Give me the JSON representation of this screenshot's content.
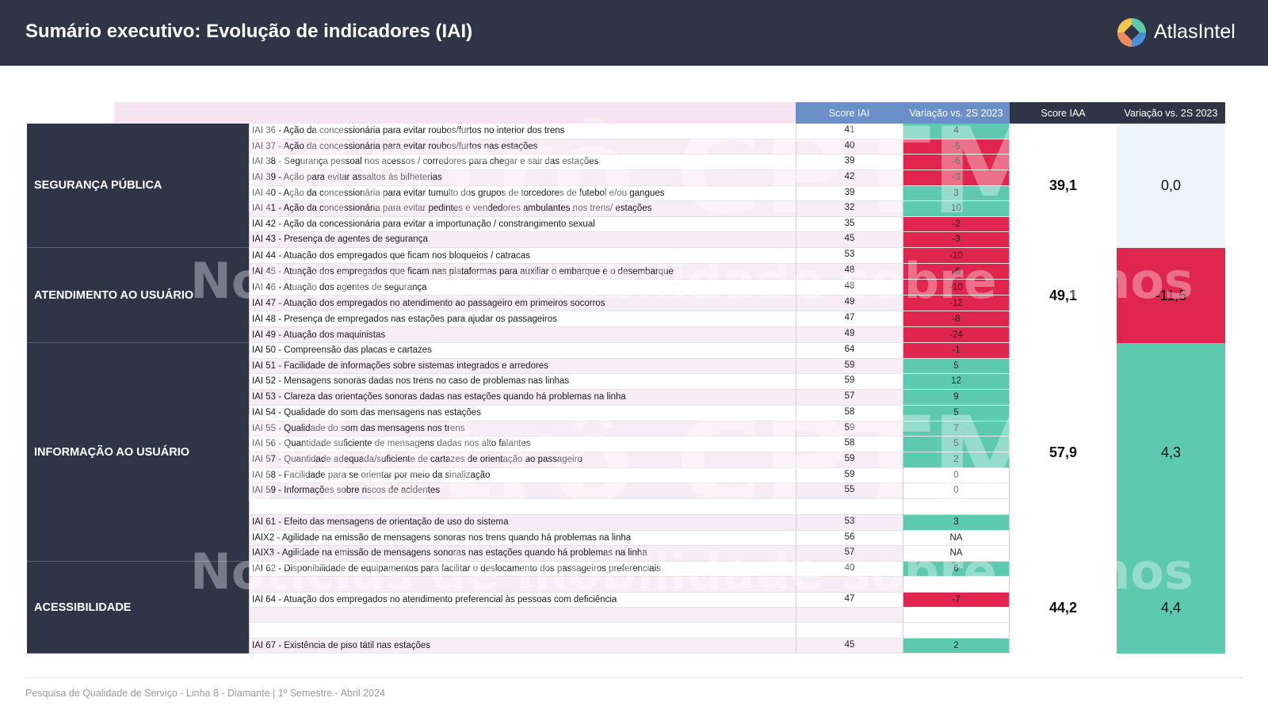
{
  "header": {
    "title": "Sumário executivo: Evolução de indicadores (IAI)",
    "logo_text": "AtlasIntel",
    "logo_icon": "atlasintel-logo-icon"
  },
  "columns": {
    "score_iai": "Score IAI",
    "variacao_iai": "Variação vs. 2S 2023",
    "score_iaa": "Score IAA",
    "variacao_iaa": "Variação vs. 2S 2023"
  },
  "colors": {
    "header_bg": "#2f3547",
    "positive": "#5dcab0",
    "negative": "#e0264e",
    "column_header_blue": "#6b8fc8"
  },
  "sections": [
    {
      "name": "SEGURANÇA PÚBLICA",
      "score_iaa": "39,1",
      "variacao_iaa": "0,0",
      "rows": [
        {
          "label": "IAI 36 - Ação da concessionária para evitar roubos/furtos no interior dos trens",
          "score": "41",
          "var": "4",
          "tone": "pos"
        },
        {
          "label": "IAI 37 - Ação da concessionária para evitar roubos/furtos nas estações",
          "score": "40",
          "var": "-5",
          "tone": "neg"
        },
        {
          "label": "IAI 38 - Segurança pessoal nos acessos / corredores para chegar e sair das estações",
          "score": "39",
          "var": "-6",
          "tone": "neg"
        },
        {
          "label": "IAI 39 - Ação para evitar assaltos às bilheterias",
          "score": "42",
          "var": "-3",
          "tone": "neg"
        },
        {
          "label": "IAI 40 - Ação da concessionária para evitar tumulto dos grupos de torcedores de futebol e/ou gangues",
          "score": "39",
          "var": "3",
          "tone": "pos"
        },
        {
          "label": "IAI 41 - Ação da concessionária para evitar pedintes e vendedores ambulantes nos trens/ estações",
          "score": "32",
          "var": "10",
          "tone": "pos"
        },
        {
          "label": "IAI 42 - Ação da concessionária para evitar a importunação / constrangimento sexual",
          "score": "35",
          "var": "-2",
          "tone": "neg"
        },
        {
          "label": "IAI 43 - Presença de agentes de segurança",
          "score": "45",
          "var": "-3",
          "tone": "neg"
        }
      ]
    },
    {
      "name": "ATENDIMENTO AO USUÁRIO",
      "score_iaa": "49,1",
      "variacao_iaa": "-11,5",
      "rows": [
        {
          "label": "IAI 44 - Atuação dos empregados que ficam nos bloqueios / catracas",
          "score": "53",
          "var": "-10",
          "tone": "neg"
        },
        {
          "label": "IAI 45 - Atuação dos empregados que ficam nas plataformas para auxiliar o embarque e o desembarque",
          "score": "48",
          "var": "-6",
          "tone": "neg"
        },
        {
          "label": "IAI 46 - Atuação dos agentes de segurança",
          "score": "48",
          "var": "-10",
          "tone": "neg"
        },
        {
          "label": "IAI 47 - Atuação dos empregados no atendimento ao passageiro em primeiros socorros",
          "score": "49",
          "var": "-12",
          "tone": "neg"
        },
        {
          "label": "IAI 48 - Presença de empregados nas estações para ajudar os passageiros",
          "score": "47",
          "var": "-8",
          "tone": "neg"
        },
        {
          "label": "IAI 49 - Atuação dos maquinistas",
          "score": "49",
          "var": "-24",
          "tone": "neg"
        }
      ]
    },
    {
      "name": "INFORMAÇÃO AO USUÁRIO",
      "score_iaa": "57,9",
      "variacao_iaa": "4,3",
      "rows": [
        {
          "label": "IAI 50 - Compreensão das placas e cartazes",
          "score": "64",
          "var": "-1",
          "tone": "neg"
        },
        {
          "label": "IAI 51 - Facilidade de informações sobre sistemas integrados e arredores",
          "score": "59",
          "var": "5",
          "tone": "pos"
        },
        {
          "label": "IAI 52 - Mensagens sonoras dadas nos trens no caso de problemas nas linhas",
          "score": "59",
          "var": "12",
          "tone": "pos"
        },
        {
          "label": "IAI 53 - Clareza das orientações sonoras dadas nas estações quando há problemas na linha",
          "score": "57",
          "var": "9",
          "tone": "pos"
        },
        {
          "label": "IAI 54 - Qualidade do som das mensagens nas estações",
          "score": "58",
          "var": "5",
          "tone": "pos"
        },
        {
          "label": "IAI 55 - Qualidade do som das mensagens nos trens",
          "score": "59",
          "var": "7",
          "tone": "pos"
        },
        {
          "label": "IAI 56 - Quantidade suficiente de mensagens dadas nos alto falantes",
          "score": "58",
          "var": "5",
          "tone": "pos"
        },
        {
          "label": "IAI 57 - Quantidade adequada/suficiente de cartazes de orientação ao passageiro",
          "score": "59",
          "var": "2",
          "tone": "pos"
        },
        {
          "label": "IAI 58 - Facilidade para se orientar por meio da sinalização",
          "score": "59",
          "var": "0",
          "tone": "neu"
        },
        {
          "label": "IAI 59 - Informações sobre riscos de acidentes",
          "score": "55",
          "var": "0",
          "tone": "neu"
        },
        {
          "label": "",
          "score": "",
          "var": "",
          "tone": "empty"
        },
        {
          "label": "IAI 61 - Efeito das mensagens de orientação de uso do sistema",
          "score": "53",
          "var": "3",
          "tone": "pos"
        },
        {
          "label": "IAIX2 - Agilidade na emissão de mensagens sonoras nos trens quando há problemas na linha",
          "score": "56",
          "var": "NA",
          "tone": "neu"
        },
        {
          "label": "IAIX3 - Agilidade na emissão de mensagens sonoras nas estações quando há problemas na linha",
          "score": "57",
          "var": "NA",
          "tone": "neu"
        }
      ]
    },
    {
      "name": "ACESSIBILIDADE",
      "score_iaa": "44,2",
      "variacao_iaa": "4,4",
      "rows": [
        {
          "label": "IAI 62 - Disponibilidade de equipamentos para facilitar o deslocamento dos passageiros preferenciais",
          "score": "40",
          "var": "6",
          "tone": "pos"
        },
        {
          "label": "",
          "score": "",
          "var": "",
          "tone": "empty"
        },
        {
          "label": "IAI 64 - Atuação dos empregados no atendimento preferencial às pessoas com deficiência",
          "score": "47",
          "var": "-7",
          "tone": "neg"
        },
        {
          "label": "",
          "score": "",
          "var": "",
          "tone": "empty"
        },
        {
          "label": "",
          "score": "",
          "var": "",
          "tone": "empty"
        },
        {
          "label": "IAI 67 - Existência de piso tátil nas estações",
          "score": "45",
          "var": "2",
          "tone": "pos"
        }
      ]
    }
  ],
  "watermarks": {
    "brand": "Metrô CPTM",
    "tagline": "Notícias de mobilidade sobre trilhos"
  },
  "footer": {
    "text": "Pesquisa de Qualidade de Serviço - Linha 8 - Diamante | 1º Semestre - Abril 2024"
  }
}
